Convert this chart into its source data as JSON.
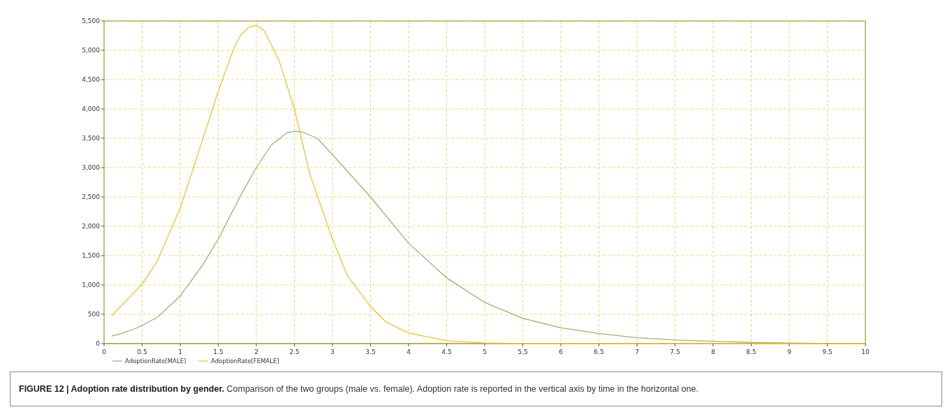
{
  "chart_data": {
    "type": "line",
    "title": "FIGURE 12 | Adoption rate distribution by gender.",
    "annotations": [
      "Comparison of the two groups (male vs. female). Adoption rate is reported in the vertical axis by time in the horizontal one."
    ],
    "xlim": [
      0,
      10
    ],
    "xticks": [
      0,
      0.5,
      1,
      1.5,
      2,
      2.5,
      3,
      3.5,
      4,
      4.5,
      5,
      5.5,
      6,
      6.5,
      7,
      7.5,
      8,
      8.5,
      9,
      9.5,
      10
    ],
    "ylim": [
      0,
      5500
    ],
    "yticks": [
      0,
      500,
      {
        "value": 1000,
        "label": "1,000"
      },
      {
        "value": 1500,
        "label": "1,500"
      },
      {
        "value": 2000,
        "label": "2,000"
      },
      {
        "value": 2500,
        "label": "2,500"
      },
      {
        "value": 3000,
        "label": "3,000"
      },
      {
        "value": 3500,
        "label": "3,500"
      },
      {
        "value": 4000,
        "label": "4,000"
      },
      {
        "value": 4500,
        "label": "4,500"
      },
      {
        "value": 5000,
        "label": "5,000"
      },
      {
        "value": 5500,
        "label": "5,500"
      }
    ],
    "grid": true,
    "legend": "bottom left",
    "line_style": "solid",
    "series": [
      {
        "name": "AdoptionRate[MALE]",
        "color": "#8fb86f",
        "x": [
          0.1,
          0.2,
          0.4,
          0.5,
          0.7,
          1.0,
          1.3,
          1.5,
          1.8,
          2.0,
          2.2,
          2.4,
          2.5,
          2.6,
          2.8,
          3.0,
          3.5,
          4.0,
          4.5,
          5.0,
          5.5,
          6.0,
          6.5,
          7.0,
          7.5,
          8.0,
          8.5,
          9.0,
          9.5,
          10
        ],
        "values": [
          130,
          160,
          250,
          310,
          450,
          810,
          1350,
          1780,
          2540,
          3000,
          3390,
          3590,
          3620,
          3610,
          3500,
          3220,
          2500,
          1710,
          1120,
          700,
          430,
          270,
          170,
          100,
          60,
          40,
          20,
          10,
          0,
          0
        ]
      },
      {
        "name": "AdoptionRate[FEMALE]",
        "color": "#f0c030",
        "x": [
          0.1,
          0.5,
          0.7,
          1.0,
          1.2,
          1.5,
          1.7,
          1.8,
          1.9,
          2.0,
          2.1,
          2.2,
          2.3,
          2.5,
          2.7,
          3.0,
          3.2,
          3.5,
          3.7,
          4.0,
          4.5,
          5.0,
          5.5,
          6,
          7,
          8,
          9,
          10
        ],
        "values": [
          480,
          1010,
          1410,
          2310,
          3100,
          4300,
          5020,
          5270,
          5390,
          5430,
          5340,
          5080,
          4820,
          4000,
          2900,
          1780,
          1150,
          630,
          370,
          180,
          50,
          10,
          0,
          0,
          0,
          0,
          0,
          0
        ]
      }
    ]
  }
}
